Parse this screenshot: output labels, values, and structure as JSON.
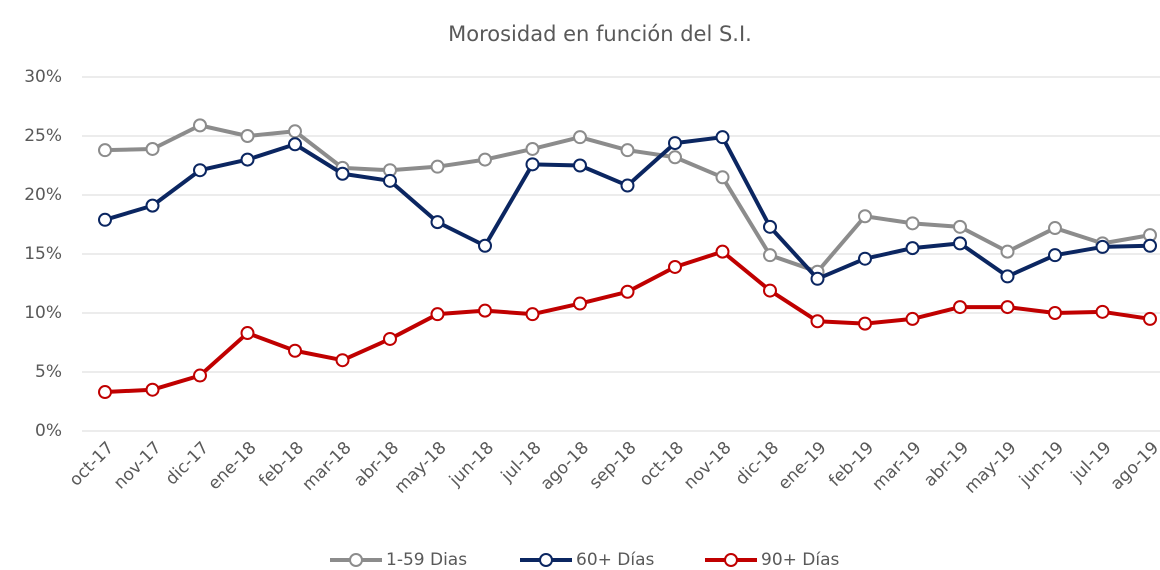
{
  "chart_data": {
    "type": "line",
    "title": "Morosidad en función del S.I.",
    "categories": [
      "oct-17",
      "nov-17",
      "dic-17",
      "ene-18",
      "feb-18",
      "mar-18",
      "abr-18",
      "may-18",
      "jun-18",
      "jul-18",
      "ago-18",
      "sep-18",
      "oct-18",
      "nov-18",
      "dic-18",
      "ene-19",
      "feb-19",
      "mar-19",
      "abr-19",
      "may-19",
      "jun-19",
      "jul-19",
      "ago-19"
    ],
    "series": [
      {
        "name": "1-59 Dias",
        "color": "#8c8c8c",
        "values": [
          23.8,
          23.9,
          25.9,
          25.0,
          25.4,
          22.3,
          22.1,
          22.4,
          23.0,
          23.9,
          24.9,
          23.8,
          23.2,
          21.5,
          14.9,
          13.5,
          18.2,
          17.6,
          17.3,
          15.2,
          17.2,
          15.9,
          16.6
        ]
      },
      {
        "name": "60+ Días",
        "color": "#0b2661",
        "values": [
          17.9,
          19.1,
          22.1,
          23.0,
          24.3,
          21.8,
          21.2,
          17.7,
          15.7,
          22.6,
          22.5,
          20.8,
          24.4,
          24.9,
          17.3,
          12.9,
          14.6,
          15.5,
          15.9,
          13.1,
          14.9,
          15.6,
          15.7
        ]
      },
      {
        "name": "90+ Días",
        "color": "#c00000",
        "values": [
          3.3,
          3.5,
          4.7,
          8.3,
          6.8,
          6.0,
          7.8,
          9.9,
          10.2,
          9.9,
          10.8,
          11.8,
          13.9,
          15.2,
          11.9,
          9.3,
          9.1,
          9.5,
          10.5,
          10.5,
          10.0,
          10.1,
          9.5
        ]
      }
    ],
    "ylim": [
      0,
      30
    ],
    "yticks": [
      {
        "value": 0,
        "label": "0%"
      },
      {
        "value": 5,
        "label": "5%"
      },
      {
        "value": 10,
        "label": "10%"
      },
      {
        "value": 15,
        "label": "15%"
      },
      {
        "value": 20,
        "label": "20%"
      },
      {
        "value": 25,
        "label": "25%"
      },
      {
        "value": 30,
        "label": "30%"
      }
    ],
    "grid": true,
    "legend": "bottom"
  }
}
